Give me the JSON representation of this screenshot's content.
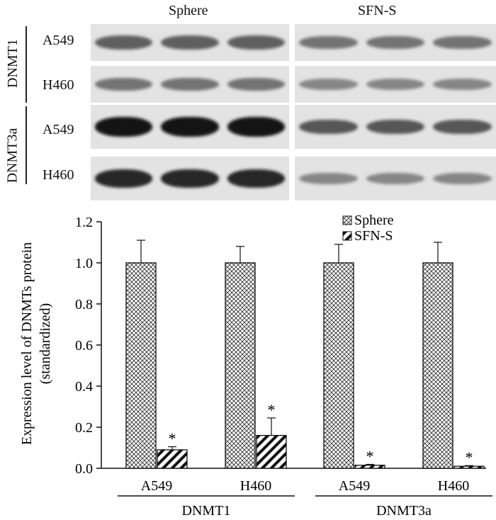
{
  "blot": {
    "columns": [
      "Sphere",
      "SFN-S"
    ],
    "groups": [
      "DNMT1",
      "DNMT3a"
    ],
    "rows": [
      {
        "label": "A549",
        "band_intensity": [
          0.55,
          0.45
        ]
      },
      {
        "label": "H460",
        "band_intensity": [
          0.45,
          0.35
        ]
      },
      {
        "label": "A549",
        "band_intensity": [
          0.95,
          0.6
        ]
      },
      {
        "label": "H460",
        "band_intensity": [
          0.85,
          0.35
        ]
      }
    ]
  },
  "chart_data": {
    "type": "bar",
    "ylabel": "Expression level of DNMTs protein (standardized)",
    "ylabel_lines": [
      "Expression level of DNMTs protein",
      "(standardized)"
    ],
    "ylim": [
      0,
      1.2
    ],
    "yticks": [
      "1.2",
      "1.0",
      "0.8",
      "0.6",
      "0.4",
      "0.2",
      "0.0"
    ],
    "categories": [
      "A549",
      "H460",
      "A549",
      "H460"
    ],
    "group_labels": [
      "DNMT1",
      "DNMT3a"
    ],
    "series": [
      {
        "name": "Sphere",
        "values": [
          1.0,
          1.0,
          1.0,
          1.0
        ],
        "errors": [
          0.11,
          0.08,
          0.09,
          0.1
        ],
        "pattern": "crosshatch"
      },
      {
        "name": "SFN-S",
        "values": [
          0.09,
          0.16,
          0.015,
          0.01
        ],
        "errors": [
          0.015,
          0.085,
          0.004,
          0.003
        ],
        "pattern": "diagonal"
      }
    ],
    "significance_marker": "*",
    "legend_position": "top-right"
  }
}
